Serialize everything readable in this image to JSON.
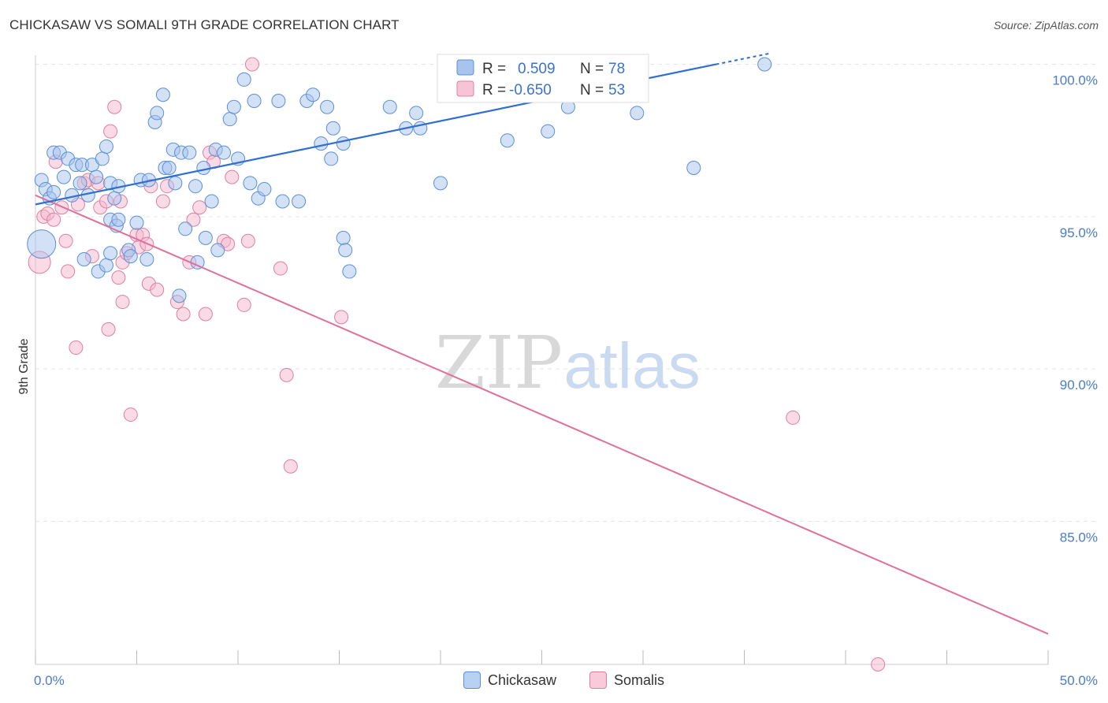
{
  "title": "CHICKASAW VS SOMALI 9TH GRADE CORRELATION CHART",
  "source": "Source: ZipAtlas.com",
  "watermark": {
    "zip": "ZIP",
    "atlas": "atlas"
  },
  "legend_top": {
    "rows": [
      {
        "r_label": "R =",
        "r_value": "0.509",
        "n_label": "N =",
        "n_value": "78"
      },
      {
        "r_label": "R =",
        "r_value": "-0.650",
        "n_label": "N =",
        "n_value": "53"
      }
    ]
  },
  "legend_bottom": {
    "items": [
      "Chickasaw",
      "Somalis"
    ]
  },
  "colors": {
    "blue_fill": "#a8c4ee",
    "blue_stroke": "#5b8fd6",
    "blue_line": "#2f6fd0",
    "pink_fill": "#f6b8cc",
    "pink_stroke": "#e07fa0",
    "pink_line": "#e0709a",
    "tick_label": "#4a7cc9",
    "grid": "#e3e3e3"
  },
  "chart_data": {
    "type": "scatter",
    "title": "CHICKASAW VS SOMALI 9TH GRADE CORRELATION CHART",
    "xlabel": "",
    "ylabel": "9th Grade",
    "xlim": [
      0,
      50
    ],
    "ylim": [
      80.3,
      100.3
    ],
    "x_tick_labels": [
      {
        "value": 0,
        "label": "0.0%"
      },
      {
        "value": 50,
        "label": "50.0%"
      }
    ],
    "y_tick_labels": [
      {
        "value": 100,
        "label": "100.0%"
      },
      {
        "value": 95,
        "label": "95.0%"
      },
      {
        "value": 90,
        "label": "90.0%"
      },
      {
        "value": 85,
        "label": "85.0%"
      }
    ],
    "grid": "horizontal dashed",
    "legend_placement": "top-center and bottom-center",
    "series": [
      {
        "name": "Chickasaw",
        "r": 0.509,
        "n": 78,
        "trend": {
          "x": [
            0,
            33.6
          ],
          "y": [
            95.4,
            100.0
          ]
        },
        "trend_ext": {
          "x": [
            33.6,
            36.2
          ],
          "y": [
            100.0,
            100.35
          ]
        },
        "points": [
          [
            0.3,
            96.2
          ],
          [
            0.5,
            95.9
          ],
          [
            0.7,
            95.6
          ],
          [
            0.9,
            95.8
          ],
          [
            0.9,
            97.1
          ],
          [
            1.2,
            97.1
          ],
          [
            1.4,
            96.3
          ],
          [
            1.6,
            96.9
          ],
          [
            1.8,
            95.7
          ],
          [
            2.0,
            96.7
          ],
          [
            2.2,
            96.1
          ],
          [
            2.3,
            96.7
          ],
          [
            2.6,
            95.7
          ],
          [
            2.8,
            96.7
          ],
          [
            3.0,
            96.3
          ],
          [
            3.3,
            96.9
          ],
          [
            3.5,
            97.3
          ],
          [
            3.7,
            96.1
          ],
          [
            3.9,
            95.6
          ],
          [
            4.1,
            96.0
          ],
          [
            2.4,
            93.6
          ],
          [
            3.1,
            93.2
          ],
          [
            3.5,
            93.4
          ],
          [
            3.7,
            94.9
          ],
          [
            3.7,
            93.8
          ],
          [
            4.0,
            94.7
          ],
          [
            4.1,
            94.9
          ],
          [
            4.6,
            93.9
          ],
          [
            4.7,
            93.7
          ],
          [
            5.0,
            94.8
          ],
          [
            5.2,
            96.2
          ],
          [
            5.5,
            93.6
          ],
          [
            5.6,
            96.2
          ],
          [
            5.9,
            98.1
          ],
          [
            6.0,
            98.4
          ],
          [
            6.3,
            99.0
          ],
          [
            6.4,
            96.6
          ],
          [
            6.6,
            96.6
          ],
          [
            6.8,
            97.2
          ],
          [
            6.9,
            96.1
          ],
          [
            7.1,
            92.4
          ],
          [
            7.2,
            97.1
          ],
          [
            7.4,
            94.6
          ],
          [
            7.6,
            97.1
          ],
          [
            7.9,
            96.0
          ],
          [
            8.0,
            93.5
          ],
          [
            8.3,
            96.6
          ],
          [
            8.4,
            94.3
          ],
          [
            8.7,
            95.5
          ],
          [
            8.9,
            97.2
          ],
          [
            9.0,
            93.9
          ],
          [
            9.3,
            97.1
          ],
          [
            9.6,
            98.2
          ],
          [
            9.8,
            98.6
          ],
          [
            10.0,
            96.9
          ],
          [
            10.3,
            99.5
          ],
          [
            10.6,
            96.1
          ],
          [
            10.8,
            98.8
          ],
          [
            11.0,
            95.6
          ],
          [
            11.3,
            95.9
          ],
          [
            12.0,
            98.8
          ],
          [
            12.2,
            95.5
          ],
          [
            13.0,
            95.5
          ],
          [
            13.4,
            98.8
          ],
          [
            13.7,
            99.0
          ],
          [
            14.1,
            97.4
          ],
          [
            14.4,
            98.6
          ],
          [
            14.7,
            97.9
          ],
          [
            15.2,
            97.4
          ],
          [
            14.6,
            96.9
          ],
          [
            15.2,
            94.3
          ],
          [
            15.3,
            93.9
          ],
          [
            15.5,
            93.2
          ],
          [
            17.5,
            98.6
          ],
          [
            18.3,
            97.9
          ],
          [
            18.8,
            98.4
          ],
          [
            19.0,
            97.9
          ],
          [
            20.0,
            96.1
          ]
        ],
        "big_point": [
          0.3,
          94.1
        ],
        "extra_points": [
          [
            21.5,
            100.0
          ],
          [
            22.7,
            100.0
          ],
          [
            23.3,
            97.5
          ],
          [
            25.3,
            97.8
          ],
          [
            26.3,
            98.6
          ],
          [
            29.7,
            98.4
          ],
          [
            32.5,
            96.6
          ],
          [
            36.0,
            100.0
          ]
        ]
      },
      {
        "name": "Somalis",
        "r": -0.65,
        "n": 53,
        "trend": {
          "x": [
            0,
            50
          ],
          "y": [
            95.7,
            81.3
          ]
        },
        "points": [
          [
            0.4,
            95.0
          ],
          [
            0.6,
            95.1
          ],
          [
            0.9,
            94.9
          ],
          [
            1.0,
            96.8
          ],
          [
            1.3,
            95.3
          ],
          [
            1.5,
            94.2
          ],
          [
            1.6,
            93.2
          ],
          [
            2.0,
            90.7
          ],
          [
            2.1,
            95.4
          ],
          [
            2.4,
            96.1
          ],
          [
            2.6,
            96.2
          ],
          [
            2.8,
            93.7
          ],
          [
            3.1,
            96.1
          ],
          [
            3.2,
            95.3
          ],
          [
            3.5,
            95.5
          ],
          [
            3.6,
            91.3
          ],
          [
            3.7,
            97.8
          ],
          [
            3.9,
            98.6
          ],
          [
            4.1,
            93.0
          ],
          [
            4.2,
            95.5
          ],
          [
            4.3,
            92.2
          ],
          [
            4.3,
            93.5
          ],
          [
            4.5,
            93.8
          ],
          [
            4.7,
            88.5
          ],
          [
            5.0,
            94.4
          ],
          [
            5.1,
            94.0
          ],
          [
            5.3,
            94.4
          ],
          [
            5.5,
            94.1
          ],
          [
            5.6,
            92.8
          ],
          [
            5.7,
            96.0
          ],
          [
            6.0,
            92.6
          ],
          [
            6.3,
            95.5
          ],
          [
            6.5,
            96.0
          ],
          [
            7.0,
            92.2
          ],
          [
            7.3,
            91.8
          ],
          [
            7.6,
            93.5
          ],
          [
            7.8,
            94.9
          ],
          [
            8.1,
            95.3
          ],
          [
            8.4,
            91.8
          ],
          [
            8.6,
            97.1
          ],
          [
            8.8,
            96.8
          ],
          [
            9.3,
            94.2
          ],
          [
            9.5,
            94.1
          ],
          [
            9.7,
            96.3
          ],
          [
            10.3,
            92.1
          ],
          [
            10.5,
            94.2
          ],
          [
            10.7,
            100.0
          ],
          [
            12.1,
            93.3
          ],
          [
            12.4,
            89.8
          ],
          [
            12.6,
            86.8
          ],
          [
            15.1,
            91.7
          ],
          [
            37.4,
            88.4
          ],
          [
            41.6,
            80.3
          ]
        ],
        "big_point": [
          0.2,
          93.5
        ]
      }
    ]
  }
}
